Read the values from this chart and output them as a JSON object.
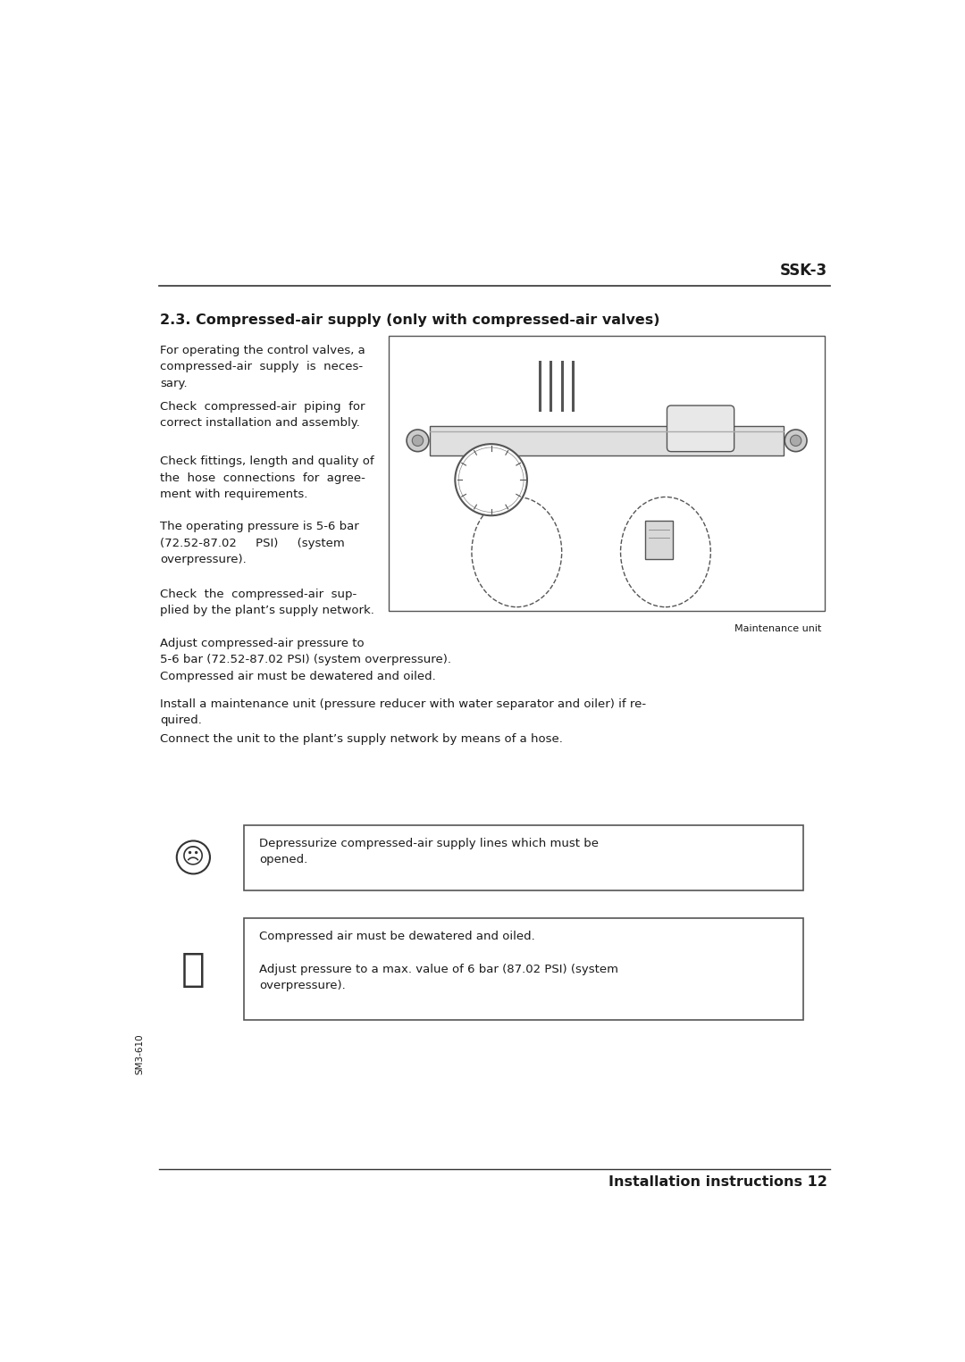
{
  "page_title": "SSK-3",
  "section_heading": "2.3. Compressed-air supply (only with compressed-air valves)",
  "paragraphs": [
    "For operating the control valves, a\ncompressed-air  supply  is  neces-\nsary.",
    "Check  compressed-air  piping  for\ncorrect installation and assembly.",
    "Check fittings, length and quality of\nthe  hose  connections  for  agree-\nment with requirements.",
    "The operating pressure is 5-6 bar\n(72.52-87.02     PSI)     (system\noverpressure).",
    "Check  the  compressed-air  sup-\nplied by the plant’s supply network."
  ],
  "para2_texts": [
    "Adjust compressed-air pressure to\n5-6 bar (72.52-87.02 PSI) (system overpressure).",
    "Compressed air must be dewatered and oiled.",
    "Install a maintenance unit (pressure reducer with water separator and oiler) if re-\nquired.",
    "Connect the unit to the plant’s supply network by means of a hose."
  ],
  "img_caption": "Maintenance unit",
  "warning_text": "Depressurize compressed-air supply lines which must be\nopened.",
  "note_text1": "Compressed air must be dewatered and oiled.",
  "note_text2": "Adjust pressure to a max. value of 6 bar (87.02 PSI) (system\noverpressure).",
  "footer_text": "Installation instructions 12",
  "side_text": "SM3-610",
  "bg_color": "#ffffff",
  "text_color": "#1a1a1a",
  "line_color": "#333333",
  "box_border_color": "#555555",
  "heading_fontsize": 11.5,
  "body_fontsize": 9.5,
  "title_fontsize": 12
}
